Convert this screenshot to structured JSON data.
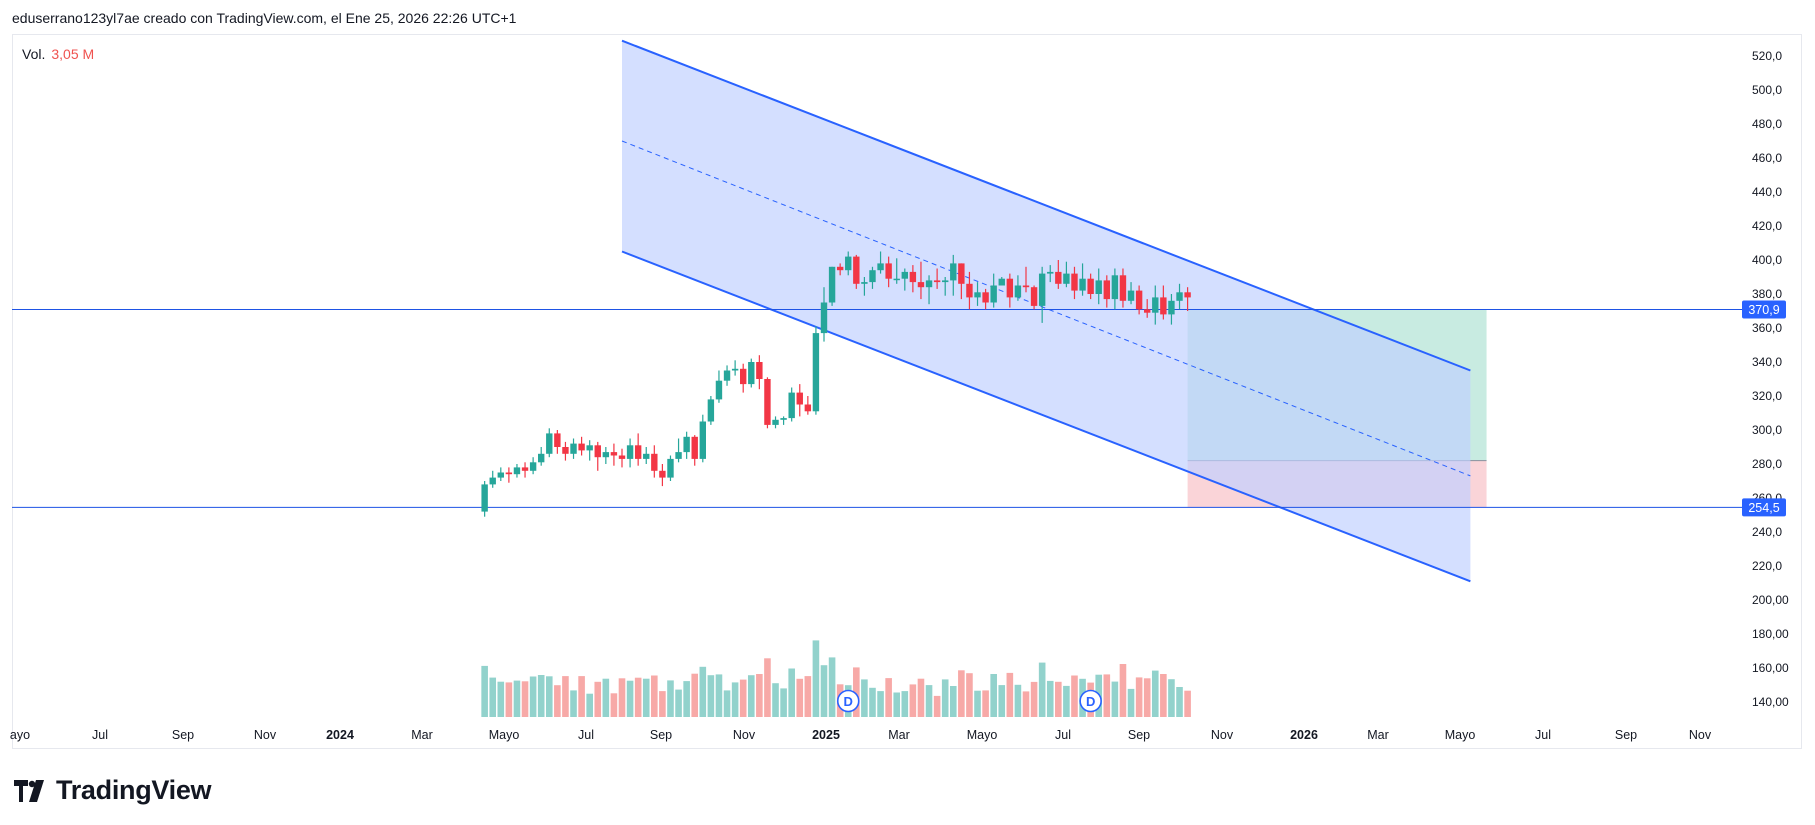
{
  "header": {
    "caption": "eduserrano123yl7ae creado con TradingView.com, el Ene 25, 2026 22:26 UTC+1"
  },
  "volume_legend": {
    "label": "Vol.",
    "value": "3,05 M"
  },
  "brand": {
    "name": "TradingView"
  },
  "colors": {
    "up": "#26a69a",
    "down": "#f23645",
    "vol_up": "#92d2cc",
    "vol_down": "#f7a9a7",
    "channel_line": "#2962ff",
    "channel_fill": "#bfd0ff",
    "profit_zone": "#c8ebe1",
    "stop_zone": "#fad4d8",
    "level_line": "#1e53e5"
  },
  "chart_data": {
    "type": "candlestick",
    "y_axis": {
      "ticks": [
        "520,0",
        "500,0",
        "480,0",
        "460,0",
        "440,0",
        "420,0",
        "400,0",
        "380,0",
        "360,0",
        "340,0",
        "320,0",
        "300,0",
        "280,0",
        "260,0",
        "240,0",
        "220,0",
        "200,00",
        "180,00",
        "160,00",
        "140,00"
      ],
      "range": [
        127,
        528
      ]
    },
    "x_axis": {
      "labels": [
        {
          "text": "ayo",
          "bold": false
        },
        {
          "text": "Jul",
          "bold": false
        },
        {
          "text": "Sep",
          "bold": false
        },
        {
          "text": "Nov",
          "bold": false
        },
        {
          "text": "2024",
          "bold": true
        },
        {
          "text": "Mar",
          "bold": false
        },
        {
          "text": "Mayo",
          "bold": false
        },
        {
          "text": "Jul",
          "bold": false
        },
        {
          "text": "Sep",
          "bold": false
        },
        {
          "text": "Nov",
          "bold": false
        },
        {
          "text": "2025",
          "bold": true
        },
        {
          "text": "Mar",
          "bold": false
        },
        {
          "text": "Mayo",
          "bold": false
        },
        {
          "text": "Jul",
          "bold": false
        },
        {
          "text": "Sep",
          "bold": false
        },
        {
          "text": "Nov",
          "bold": false
        },
        {
          "text": "2026",
          "bold": true
        },
        {
          "text": "Mar",
          "bold": false
        },
        {
          "text": "Mayo",
          "bold": false
        },
        {
          "text": "Jul",
          "bold": false
        },
        {
          "text": "Sep",
          "bold": false
        },
        {
          "text": "Nov",
          "bold": false
        }
      ]
    },
    "levels": [
      {
        "value": 370.9,
        "label": "370,9"
      },
      {
        "value": 254.5,
        "label": "254,5"
      }
    ],
    "channel": {
      "upper": [
        [
          0,
          529
        ],
        [
          105,
          335
        ]
      ],
      "lower": [
        [
          0,
          405
        ],
        [
          105,
          211
        ]
      ],
      "mid": [
        [
          0,
          470
        ],
        [
          105,
          273
        ]
      ]
    },
    "position": {
      "start": 70,
      "end": 107,
      "target": 370.9,
      "entry": 282,
      "stop": 254.5
    },
    "volume_markers": [
      {
        "index": 28,
        "label": "D"
      },
      {
        "index": 58,
        "label": "D"
      }
    ],
    "candles": [
      [
        252,
        268,
        249,
        270
      ],
      [
        268,
        272,
        266,
        276
      ],
      [
        272,
        275,
        270,
        278
      ],
      [
        275,
        274,
        269,
        278
      ],
      [
        274,
        278,
        272,
        280
      ],
      [
        278,
        276,
        272,
        281
      ],
      [
        276,
        281,
        274,
        284
      ],
      [
        281,
        286,
        279,
        290
      ],
      [
        286,
        298,
        284,
        301
      ],
      [
        298,
        290,
        286,
        300
      ],
      [
        290,
        286,
        282,
        293
      ],
      [
        286,
        292,
        283,
        295
      ],
      [
        292,
        288,
        285,
        296
      ],
      [
        288,
        291,
        282,
        294
      ],
      [
        291,
        284,
        276,
        293
      ],
      [
        284,
        287,
        280,
        290
      ],
      [
        287,
        285,
        279,
        292
      ],
      [
        285,
        283,
        278,
        289
      ],
      [
        283,
        291,
        278,
        295
      ],
      [
        291,
        283,
        279,
        298
      ],
      [
        283,
        286,
        280,
        290
      ],
      [
        286,
        276,
        272,
        291
      ],
      [
        276,
        272,
        267,
        280
      ],
      [
        272,
        283,
        270,
        285
      ],
      [
        283,
        287,
        281,
        295
      ],
      [
        287,
        296,
        283,
        299
      ],
      [
        296,
        283,
        279,
        297
      ],
      [
        283,
        305,
        281,
        309
      ],
      [
        305,
        318,
        303,
        320
      ],
      [
        318,
        329,
        316,
        335
      ],
      [
        329,
        335,
        326,
        338
      ],
      [
        335,
        336,
        332,
        341
      ],
      [
        336,
        327,
        322,
        339
      ],
      [
        327,
        340,
        325,
        342
      ],
      [
        340,
        330,
        324,
        344
      ],
      [
        330,
        303,
        301,
        331
      ],
      [
        303,
        306,
        301,
        308
      ],
      [
        306,
        307,
        303,
        308
      ],
      [
        307,
        322,
        305,
        325
      ],
      [
        322,
        315,
        308,
        327
      ],
      [
        315,
        311,
        309,
        320
      ],
      [
        311,
        357,
        309,
        361
      ],
      [
        357,
        375,
        352,
        384
      ],
      [
        375,
        396,
        373,
        396
      ],
      [
        396,
        394,
        391,
        398
      ],
      [
        394,
        402,
        391,
        405
      ],
      [
        402,
        386,
        383,
        403
      ],
      [
        386,
        387,
        379,
        390
      ],
      [
        387,
        394,
        383,
        396
      ],
      [
        394,
        398,
        392,
        405
      ],
      [
        398,
        389,
        384,
        402
      ],
      [
        389,
        389,
        386,
        401
      ],
      [
        389,
        393,
        382,
        395
      ],
      [
        393,
        387,
        381,
        397
      ],
      [
        387,
        384,
        377,
        399
      ],
      [
        384,
        388,
        374,
        391
      ],
      [
        388,
        387,
        383,
        395
      ],
      [
        387,
        388,
        379,
        390
      ],
      [
        388,
        398,
        379,
        403
      ],
      [
        398,
        386,
        377,
        398
      ],
      [
        386,
        378,
        371,
        393
      ],
      [
        378,
        381,
        373,
        387
      ],
      [
        381,
        375,
        371,
        383
      ],
      [
        375,
        385,
        372,
        392
      ],
      [
        385,
        389,
        385,
        390
      ],
      [
        389,
        378,
        372,
        392
      ],
      [
        378,
        385,
        376,
        391
      ],
      [
        385,
        384,
        381,
        396
      ],
      [
        384,
        373,
        371,
        385
      ],
      [
        373,
        392,
        363,
        396
      ],
      [
        392,
        393,
        387,
        397
      ],
      [
        393,
        386,
        383,
        400
      ],
      [
        386,
        392,
        384,
        399
      ],
      [
        392,
        382,
        377,
        396
      ],
      [
        382,
        389,
        379,
        398
      ],
      [
        389,
        380,
        377,
        392
      ],
      [
        380,
        388,
        374,
        395
      ],
      [
        388,
        377,
        372,
        391
      ],
      [
        377,
        391,
        371,
        395
      ],
      [
        391,
        376,
        372,
        395
      ],
      [
        376,
        382,
        374,
        387
      ],
      [
        382,
        371,
        368,
        385
      ],
      [
        371,
        369,
        366,
        377
      ],
      [
        369,
        378,
        362,
        385
      ],
      [
        378,
        368,
        365,
        385
      ],
      [
        368,
        376,
        362,
        380
      ],
      [
        376,
        381,
        371,
        386
      ],
      [
        381,
        378,
        370,
        384
      ]
    ]
  }
}
